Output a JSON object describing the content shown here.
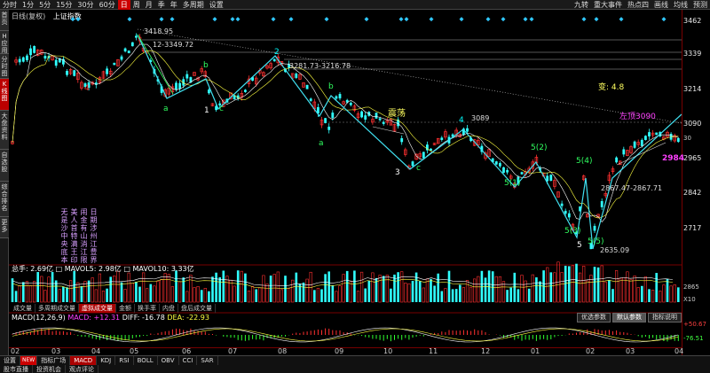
{
  "topbar": {
    "left_tabs": [
      "分时",
      "1分",
      "5分",
      "15分",
      "30分",
      "60分",
      "日",
      "周",
      "月",
      "季",
      "年",
      "多周期",
      "设置"
    ],
    "active_tab": "日",
    "right_tabs": [
      "九转",
      "重大事件",
      "热点四",
      "画线",
      "均线",
      "预测"
    ]
  },
  "leftbar": {
    "items": [
      "首页",
      "H应用",
      "分时图",
      "K线图",
      "大盘资料",
      "自选股",
      "综合排名",
      "更多"
    ],
    "active": "K线图"
  },
  "subtitle": {
    "mode": "日线(复权)",
    "index_name": "上证指数"
  },
  "price_axis": {
    "ticks": [
      "3462",
      "3339",
      "3214",
      "3090",
      "2965",
      "2842",
      "2717"
    ],
    "current_label": "30"
  },
  "annotations": {
    "high_label": "3418.95",
    "range1": "12-3349.72",
    "range2": "3281.73-3216.78",
    "level_3089": "3089",
    "shock": "震荡",
    "change": "变: 4.8",
    "pressure": "左顶3090",
    "target": "2984",
    "low_level": "2867.47-2867.71",
    "low": "2635.09"
  },
  "wave_labels": [
    {
      "text": "4",
      "color": "#ff3030"
    },
    {
      "text": "a",
      "color": "#30ff60"
    },
    {
      "text": "b",
      "color": "#30ff60"
    },
    {
      "text": "1",
      "color": "#ffffff"
    },
    {
      "text": "c",
      "color": "#30ff60"
    },
    {
      "text": "2",
      "color": "#00ffff"
    },
    {
      "text": "b",
      "color": "#30ff60"
    },
    {
      "text": "a",
      "color": "#30ff60"
    },
    {
      "text": "3",
      "color": "#ffffff"
    },
    {
      "text": "c",
      "color": "#30ff60"
    },
    {
      "text": "4",
      "color": "#00ffff"
    },
    {
      "text": "5(1)",
      "color": "#30ff60"
    },
    {
      "text": "5(2)",
      "color": "#30ff60"
    },
    {
      "text": "5(4)",
      "color": "#30ff60"
    },
    {
      "text": "5(3)",
      "color": "#30ff60"
    },
    {
      "text": "5",
      "color": "#ffffff"
    },
    {
      "text": "5(5)",
      "color": "#30ff60"
    }
  ],
  "vertical_text": [
    "日期涉州江豊界",
    "闹金有山消江限",
    "美人首特满王印",
    "无是沙中央底本"
  ],
  "volume": {
    "label_total": "总手: 2.69亿",
    "label_ma5": "MAVOL5: 2.98亿",
    "label_ma10": "MAVOL10: 3.33亿",
    "axis_top": "2865",
    "axis_unit": "X10",
    "tabs": [
      "成交量",
      "多周期成交量",
      "虚拟成交量",
      "金额",
      "换手率",
      "内盘",
      "盘后成交量"
    ],
    "active_tab": "虚拟成交量"
  },
  "macd": {
    "label_params": "MACD(12,26,9)",
    "label_macd": "MACD: +12.31",
    "label_diff": "DIFF: -16.78",
    "label_dea": "DEA: -22.93",
    "axis_top": "+50.67",
    "axis_bottom": "-76.51",
    "buttons": [
      "优选参数",
      "默认参数",
      "指标说明"
    ],
    "active_button": "默认参数"
  },
  "xaxis": {
    "labels": [
      "02",
      "03",
      "04",
      "05",
      "06",
      "07",
      "08",
      "09",
      "10",
      "11",
      "12",
      "01",
      "02",
      "03",
      "04"
    ]
  },
  "bottombar": {
    "row1": [
      "设置",
      "NEW",
      "指标广场",
      "MACD",
      "KDJ",
      "RSI",
      "BOLL",
      "OBV",
      "CCI",
      "SAR"
    ],
    "row1_active": "MACD",
    "row2": [
      "股市直播",
      "投资机会",
      "观点评论"
    ]
  },
  "colors": {
    "up": "#ff3030",
    "down": "#30ffff",
    "wave_line": "#40e0f0",
    "ma": "#ffffff",
    "ma2": "#ffff40"
  }
}
